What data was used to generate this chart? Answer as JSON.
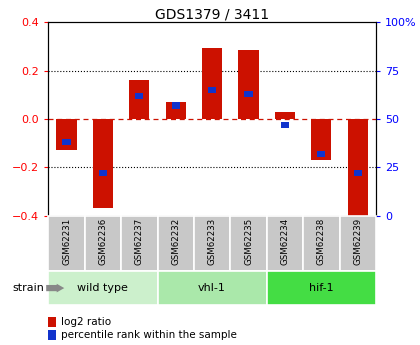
{
  "title": "GDS1379 / 3411",
  "samples": [
    "GSM62231",
    "GSM62236",
    "GSM62237",
    "GSM62232",
    "GSM62233",
    "GSM62235",
    "GSM62234",
    "GSM62238",
    "GSM62239"
  ],
  "log2_ratio": [
    -0.13,
    -0.37,
    0.16,
    0.07,
    0.295,
    0.285,
    0.03,
    -0.17,
    -0.42
  ],
  "percentile_rank": [
    38,
    22,
    62,
    57,
    65,
    63,
    47,
    32,
    22
  ],
  "groups": [
    {
      "label": "wild type",
      "start": 0,
      "end": 3,
      "color": "#ccf0cc"
    },
    {
      "label": "vhl-1",
      "start": 3,
      "end": 6,
      "color": "#aae8aa"
    },
    {
      "label": "hif-1",
      "start": 6,
      "end": 9,
      "color": "#44dd44"
    }
  ],
  "ylim_left": [
    -0.4,
    0.4
  ],
  "ylim_right": [
    0,
    100
  ],
  "bar_color_red": "#cc1100",
  "bar_color_blue": "#1133cc",
  "bar_width": 0.55,
  "strain_label": "strain",
  "legend_red": "log2 ratio",
  "legend_blue": "percentile rank within the sample",
  "zero_line_color": "#cc1100",
  "bg_gray": "#c8c8c8"
}
